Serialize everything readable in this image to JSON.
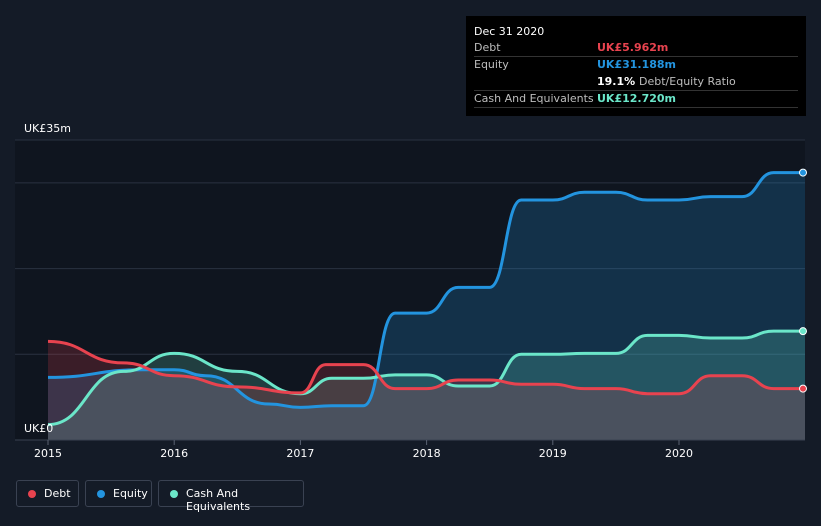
{
  "tooltip": {
    "date": "Dec 31 2020",
    "debt_label": "Debt",
    "debt_value": "UK£5.962m",
    "equity_label": "Equity",
    "equity_value": "UK£31.188m",
    "ratio_value": "19.1%",
    "ratio_label": "Debt/Equity Ratio",
    "cash_label": "Cash And Equivalents",
    "cash_value": "UK£12.720m"
  },
  "legend": {
    "debt": "Debt",
    "equity": "Equity",
    "cash": "Cash And Equivalents"
  },
  "colors": {
    "background": "#141b27",
    "debt": "#e8434f",
    "equity": "#2394df",
    "cash": "#6be6c9"
  },
  "chart_data": {
    "type": "area",
    "y_top_label": "UK£35m",
    "y_bottom_label": "UK£0",
    "ylim": [
      0,
      35
    ],
    "xlim": [
      2015,
      2021
    ],
    "x_ticks": [
      "2015",
      "2016",
      "2017",
      "2018",
      "2019",
      "2020"
    ],
    "grid": true,
    "series": [
      {
        "name": "Debt",
        "x": [
          2015.0,
          2015.6,
          2016.0,
          2016.5,
          2017.0,
          2017.2,
          2017.5,
          2017.75,
          2018.0,
          2018.25,
          2018.5,
          2018.75,
          2019.0,
          2019.25,
          2019.5,
          2019.75,
          2020.0,
          2020.25,
          2020.5,
          2020.75,
          2021.0
        ],
        "values": [
          11.5,
          9.0,
          7.5,
          6.2,
          5.5,
          8.8,
          8.8,
          6.0,
          6.0,
          7.0,
          7.0,
          6.5,
          6.5,
          6.0,
          6.0,
          5.4,
          5.4,
          7.5,
          7.5,
          6.0,
          6.0
        ]
      },
      {
        "name": "Equity",
        "x": [
          2015.0,
          2015.75,
          2016.0,
          2016.25,
          2016.75,
          2017.0,
          2017.25,
          2017.5,
          2017.75,
          2018.0,
          2018.25,
          2018.5,
          2018.75,
          2019.0,
          2019.25,
          2019.5,
          2019.75,
          2020.0,
          2020.25,
          2020.5,
          2020.75,
          2021.0
        ],
        "values": [
          7.3,
          8.2,
          8.2,
          7.5,
          4.2,
          3.8,
          4.0,
          4.0,
          14.8,
          14.8,
          17.8,
          17.8,
          28.0,
          28.0,
          28.9,
          28.9,
          28.0,
          28.0,
          28.4,
          28.4,
          31.2,
          31.2
        ]
      },
      {
        "name": "Cash And Equivalents",
        "x": [
          2015.0,
          2015.6,
          2016.0,
          2016.5,
          2017.0,
          2017.25,
          2017.5,
          2017.75,
          2018.0,
          2018.25,
          2018.5,
          2018.75,
          2019.0,
          2019.25,
          2019.5,
          2019.75,
          2020.0,
          2020.25,
          2020.5,
          2020.75,
          2021.0
        ],
        "values": [
          1.8,
          8.0,
          10.1,
          8.0,
          5.4,
          7.2,
          7.2,
          7.6,
          7.6,
          6.3,
          6.3,
          10.0,
          10.0,
          10.1,
          10.1,
          12.2,
          12.2,
          11.9,
          11.9,
          12.7,
          12.7
        ]
      }
    ]
  }
}
